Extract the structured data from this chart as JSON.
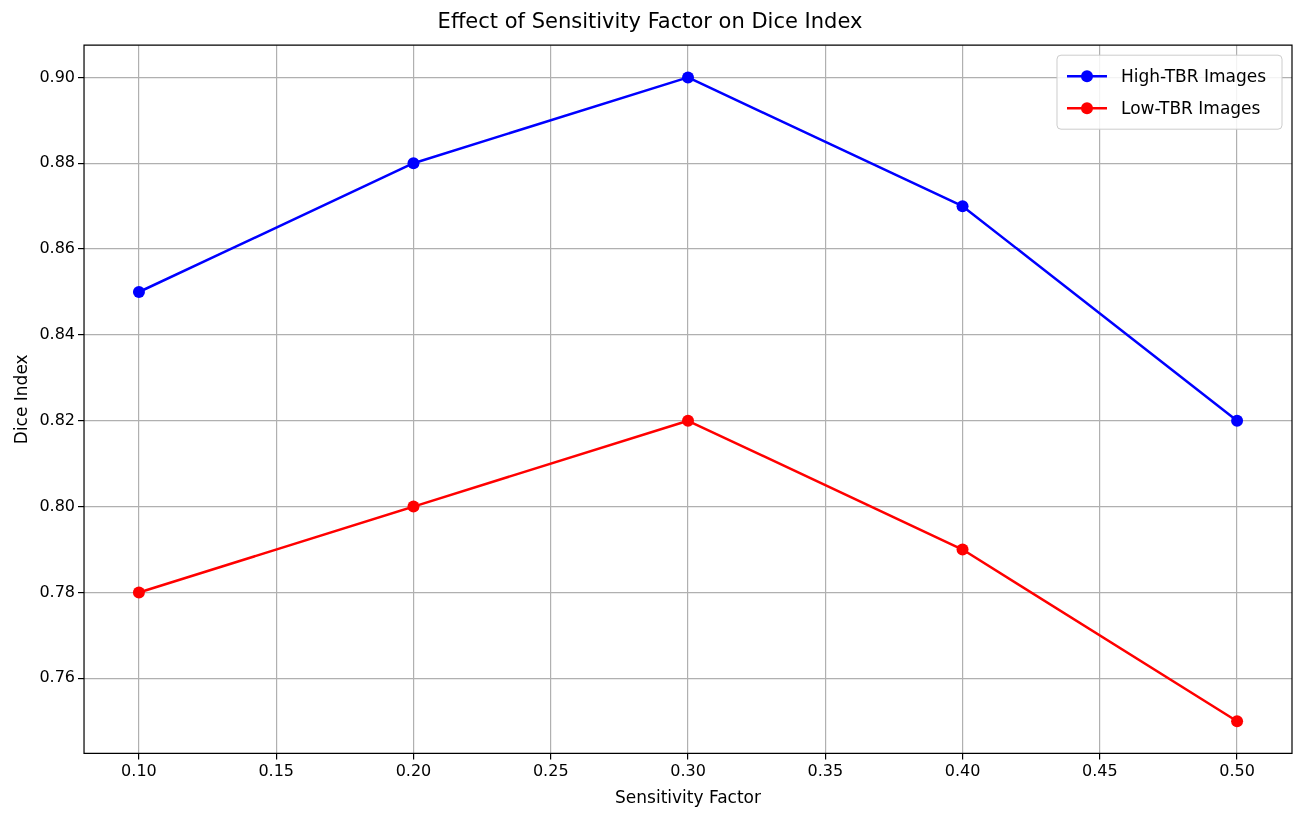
{
  "chart_data": {
    "type": "line",
    "title": "Effect of Sensitivity Factor on Dice Index",
    "xlabel": "Sensitivity Factor",
    "ylabel": "Dice Index",
    "x": [
      0.1,
      0.2,
      0.3,
      0.4,
      0.5
    ],
    "series": [
      {
        "name": "High-TBR Images",
        "color": "#0000ff",
        "values": [
          0.85,
          0.88,
          0.9,
          0.87,
          0.82
        ]
      },
      {
        "name": "Low-TBR Images",
        "color": "#ff0000",
        "values": [
          0.78,
          0.8,
          0.82,
          0.79,
          0.75
        ]
      }
    ],
    "xlim": [
      0.08,
      0.52
    ],
    "xticks": [
      {
        "value": 0.1,
        "label": "0.10"
      },
      {
        "value": 0.15,
        "label": "0.15"
      },
      {
        "value": 0.2,
        "label": "0.20"
      },
      {
        "value": 0.25,
        "label": "0.25"
      },
      {
        "value": 0.3,
        "label": "0.30"
      },
      {
        "value": 0.35,
        "label": "0.35"
      },
      {
        "value": 0.4,
        "label": "0.40"
      },
      {
        "value": 0.45,
        "label": "0.45"
      },
      {
        "value": 0.5,
        "label": "0.50"
      }
    ],
    "ylim": [
      0.7425,
      0.9075
    ],
    "yticks": [
      {
        "value": 0.76,
        "label": "0.76"
      },
      {
        "value": 0.78,
        "label": "0.78"
      },
      {
        "value": 0.8,
        "label": "0.80"
      },
      {
        "value": 0.82,
        "label": "0.82"
      },
      {
        "value": 0.84,
        "label": "0.84"
      },
      {
        "value": 0.86,
        "label": "0.86"
      },
      {
        "value": 0.88,
        "label": "0.88"
      },
      {
        "value": 0.9,
        "label": "0.90"
      }
    ],
    "grid": true,
    "legend": "top right",
    "marker": "circle",
    "line_style": "solid"
  }
}
